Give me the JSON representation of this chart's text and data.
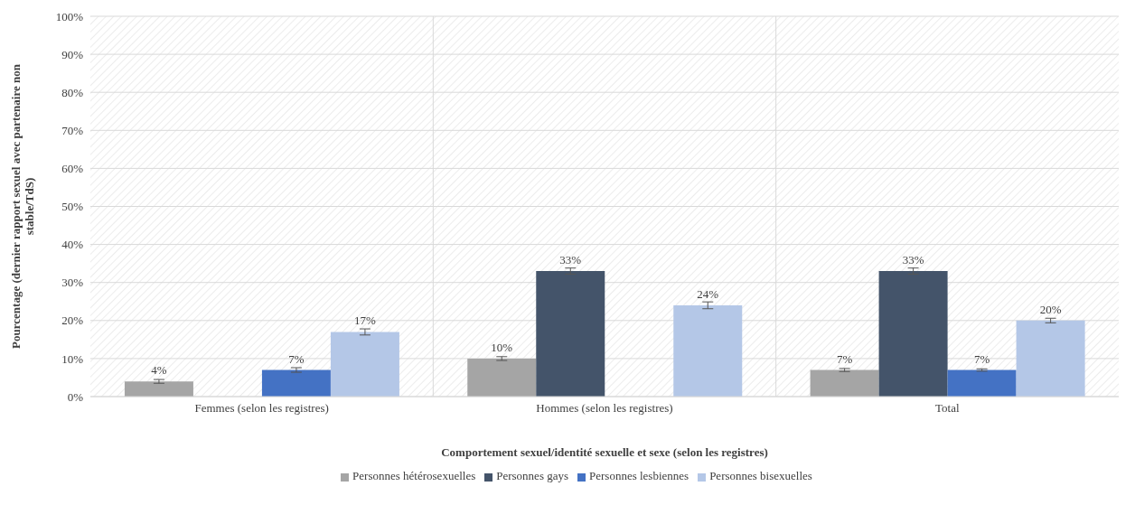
{
  "chart_data": {
    "type": "bar",
    "xlabel": "Comportement sexuel/identité sexuelle et sexe (selon les registres)",
    "ylabel": "Pourcentage (dernier rapport sexuel avec partenaire non stable/TdS)",
    "categories": [
      "Femmes (selon les registres)",
      "Hommes (selon les registres)",
      "Total"
    ],
    "series": [
      {
        "name": "Personnes hétérosexuelles",
        "color": "#a5a5a5",
        "values": [
          4,
          10,
          7
        ],
        "errors": [
          0.5,
          0.5,
          0.4
        ],
        "value_labels": [
          "4%",
          "10%",
          "7%"
        ]
      },
      {
        "name": "Personnes gays",
        "color": "#44546a",
        "values": [
          null,
          33,
          33
        ],
        "errors": [
          null,
          0.8,
          0.8
        ],
        "value_labels": [
          null,
          "33%",
          "33%"
        ]
      },
      {
        "name": "Personnes lesbiennes",
        "color": "#4472c4",
        "values": [
          7,
          null,
          7
        ],
        "errors": [
          0.6,
          null,
          0.3
        ],
        "value_labels": [
          "7%",
          null,
          "7%"
        ]
      },
      {
        "name": "Personnes bisexuelles",
        "color": "#b4c7e7",
        "values": [
          17,
          24,
          20
        ],
        "errors": [
          0.8,
          0.9,
          0.6
        ],
        "value_labels": [
          "17%",
          "24%",
          "20%"
        ]
      }
    ],
    "ylim": [
      0,
      100
    ],
    "yticks": [
      {
        "value": 0,
        "label": "0%"
      },
      {
        "value": 10,
        "label": "10%"
      },
      {
        "value": 20,
        "label": "20%"
      },
      {
        "value": 30,
        "label": "30%"
      },
      {
        "value": 40,
        "label": "40%"
      },
      {
        "value": 50,
        "label": "50%"
      },
      {
        "value": 60,
        "label": "60%"
      },
      {
        "value": 70,
        "label": "70%"
      },
      {
        "value": 80,
        "label": "80%"
      },
      {
        "value": 90,
        "label": "90%"
      },
      {
        "value": 100,
        "label": "100%"
      }
    ],
    "grid": true,
    "legend": "bottom"
  }
}
